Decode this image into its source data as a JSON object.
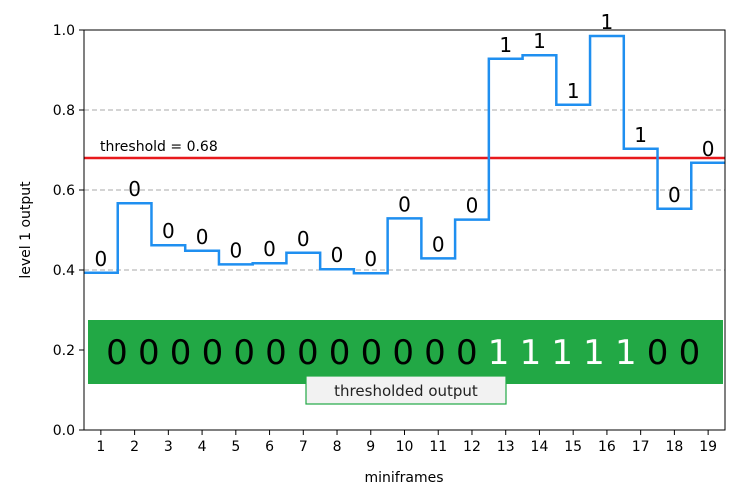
{
  "chart_data": {
    "type": "line",
    "step": true,
    "xlabel": "miniframes",
    "ylabel": "level 1 output",
    "xlim": [
      0.5,
      19.5
    ],
    "ylim": [
      0.0,
      1.0
    ],
    "x_ticks": [
      1,
      2,
      3,
      4,
      5,
      6,
      7,
      8,
      9,
      10,
      11,
      12,
      13,
      14,
      15,
      16,
      17,
      18,
      19
    ],
    "y_ticks": [
      0.0,
      0.2,
      0.4,
      0.6,
      0.8,
      1.0
    ],
    "y_tick_labels": [
      "0.0",
      "0.2",
      "0.4",
      "0.6",
      "0.8",
      "1.0"
    ],
    "grid": "horizontal dashed at 0.4, 0.6, 0.8",
    "x": [
      1,
      2,
      3,
      4,
      5,
      6,
      7,
      8,
      9,
      10,
      11,
      12,
      13,
      14,
      15,
      16,
      17,
      18,
      19
    ],
    "values": [
      0.393,
      0.567,
      0.462,
      0.448,
      0.414,
      0.417,
      0.443,
      0.402,
      0.392,
      0.529,
      0.429,
      0.526,
      0.928,
      0.937,
      0.813,
      0.985,
      0.703,
      0.553,
      0.668
    ],
    "step_labels": [
      "0",
      "0",
      "0",
      "0",
      "0",
      "0",
      "0",
      "0",
      "0",
      "0",
      "0",
      "0",
      "1",
      "1",
      "1",
      "1",
      "1",
      "0",
      "0"
    ],
    "threshold": {
      "value": 0.68,
      "label": "threshold = 0.68",
      "color": "#e8191c"
    },
    "thresholded_output": {
      "digits": [
        "0",
        "0",
        "0",
        "0",
        "0",
        "0",
        "0",
        "0",
        "0",
        "0",
        "0",
        "0",
        "1",
        "1",
        "1",
        "1",
        "1",
        "0",
        "0"
      ],
      "band_y": [
        0.115,
        0.275
      ],
      "label": "thresholded output",
      "band_color": "#22a845",
      "one_color": "#ffffff",
      "zero_color": "#000000"
    },
    "line_color": "#1f8ff0",
    "grid_color": "#aaaaaa"
  }
}
